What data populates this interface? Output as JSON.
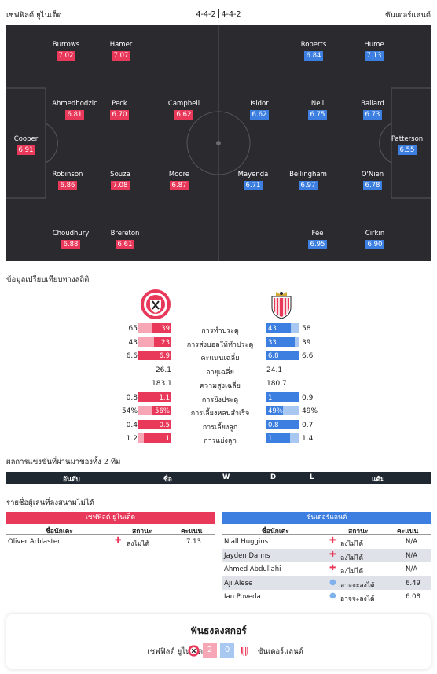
{
  "header": {
    "home_team": "เชฟฟิลด์ ยูไนเต็ด",
    "away_team": "ซันเดอร์แลนด์",
    "home_formation": "4-4-2",
    "away_formation": "4-4-2"
  },
  "colors": {
    "home": "#e8395a",
    "away": "#3d7fe0",
    "pitch": "#2b2b2f"
  },
  "lineup": {
    "home": [
      {
        "name": "Burrows",
        "rating": "7.02"
      },
      {
        "name": "Hamer",
        "rating": "7.07"
      },
      {
        "name": "Ahmedhodzic",
        "rating": "6.81"
      },
      {
        "name": "Peck",
        "rating": "6.70"
      },
      {
        "name": "Campbell",
        "rating": "6.62"
      },
      {
        "name": "Cooper",
        "rating": "6.91"
      },
      {
        "name": "Robinson",
        "rating": "6.86"
      },
      {
        "name": "Souza",
        "rating": "7.08"
      },
      {
        "name": "Moore",
        "rating": "6.87"
      },
      {
        "name": "Choudhury",
        "rating": "6.88"
      },
      {
        "name": "Brereton",
        "rating": "6.61"
      }
    ],
    "away": [
      {
        "name": "Roberts",
        "rating": "6.84"
      },
      {
        "name": "Hume",
        "rating": "7.13"
      },
      {
        "name": "Isidor",
        "rating": "6.62"
      },
      {
        "name": "Neil",
        "rating": "6.75"
      },
      {
        "name": "Ballard",
        "rating": "6.73"
      },
      {
        "name": "Patterson",
        "rating": "6.55"
      },
      {
        "name": "Mayenda",
        "rating": "6.71"
      },
      {
        "name": "Bellingham",
        "rating": "6.97"
      },
      {
        "name": "O'Nien",
        "rating": "6.78"
      },
      {
        "name": "Fée",
        "rating": "6.95"
      },
      {
        "name": "Cirkin",
        "rating": "6.90"
      }
    ]
  },
  "stats_title": "ข้อมูลเปรียบเทียบทางสถิติ",
  "stats": [
    {
      "label": "การทำประตู",
      "home_total": "65",
      "home_val": "39",
      "home_frac": 0.6,
      "away_val": "43",
      "away_total": "58",
      "away_frac": 0.74,
      "bar": true
    },
    {
      "label": "การส่งบอลให้ทำประตู",
      "home_total": "43",
      "home_val": "23",
      "home_frac": 0.53,
      "away_val": "33",
      "away_total": "39",
      "away_frac": 0.85,
      "bar": true
    },
    {
      "label": "คะแนนเฉลี่ย",
      "home_total": "6.6",
      "home_val": "6.9",
      "home_frac": 1.0,
      "away_val": "6.8",
      "away_total": "6.6",
      "away_frac": 1.0,
      "bar": true
    },
    {
      "label": "อายุเฉลี่ย",
      "home_total": "26.1",
      "away_total": "24.1",
      "bar": false
    },
    {
      "label": "ความสูงเฉลี่ย",
      "home_total": "183.1",
      "away_total": "180.7",
      "bar": false
    },
    {
      "label": "การยิงประตู",
      "home_total": "0.8",
      "home_val": "1.1",
      "home_frac": 1.0,
      "away_val": "1",
      "away_total": "0.9",
      "away_frac": 1.0,
      "bar": true
    },
    {
      "label": "การเลี้ยงหลบสำเร็จ",
      "home_total": "54%",
      "home_val": "56%",
      "home_frac": 0.56,
      "away_val": "49%",
      "away_total": "49%",
      "away_frac": 0.49,
      "bar": true
    },
    {
      "label": "การเลี้ยงลูก",
      "home_total": "0.4",
      "home_val": "0.5",
      "home_frac": 1.0,
      "away_val": "0.8",
      "away_total": "0.7",
      "away_frac": 1.0,
      "bar": true
    },
    {
      "label": "การแย่งลูก",
      "home_total": "1.2",
      "home_val": "1",
      "home_frac": 0.83,
      "away_val": "1",
      "away_total": "1.4",
      "away_frac": 0.71,
      "bar": true
    }
  ],
  "h2h": {
    "title": "ผลการแข่งขันที่ผ่านมาของทั้ง 2 ทีม",
    "columns": [
      "อันดับ",
      "ชื่อ",
      "W",
      "D",
      "L",
      "แต้ม"
    ]
  },
  "injuries": {
    "title": "รายชื่อผู้เล่นที่ลงสนามไม่ได้",
    "columns": {
      "player": "ชื่อนักเตะ",
      "status": "สถานะ",
      "score": "คะแนน"
    },
    "home": {
      "team": "เชฟฟิลด์ ยูไนเต็ด",
      "players": [
        {
          "name": "Oliver Arblaster",
          "icon": "injury-cross-icon",
          "status": "ลงไม่ได้",
          "score": "7.13"
        }
      ]
    },
    "away": {
      "team": "ซันเดอร์แลนด์",
      "players": [
        {
          "name": "Niall Huggins",
          "icon": "injury-cross-icon",
          "status": "ลงไม่ได้",
          "score": "N/A"
        },
        {
          "name": "Jayden Danns",
          "icon": "injury-cross-icon",
          "status": "ลงไม่ได้",
          "score": "N/A"
        },
        {
          "name": "Ahmed Abdullahi",
          "icon": "injury-cross-icon",
          "status": "ลงไม่ได้",
          "score": "N/A"
        },
        {
          "name": "Aji Alese",
          "icon": "doubtful-icon",
          "status": "อาจจะลงได้",
          "score": "6.49"
        },
        {
          "name": "Ian Poveda",
          "icon": "doubtful-icon",
          "status": "อาจจะลงได้",
          "score": "6.08"
        }
      ]
    }
  },
  "final": {
    "title": "ฟันธงลงสกอร์",
    "home_team": "เชฟฟิลด์ ยูไนเต็ด",
    "away_team": "ซันเดอร์แลนด์",
    "home_score": "2",
    "away_score": "0"
  }
}
